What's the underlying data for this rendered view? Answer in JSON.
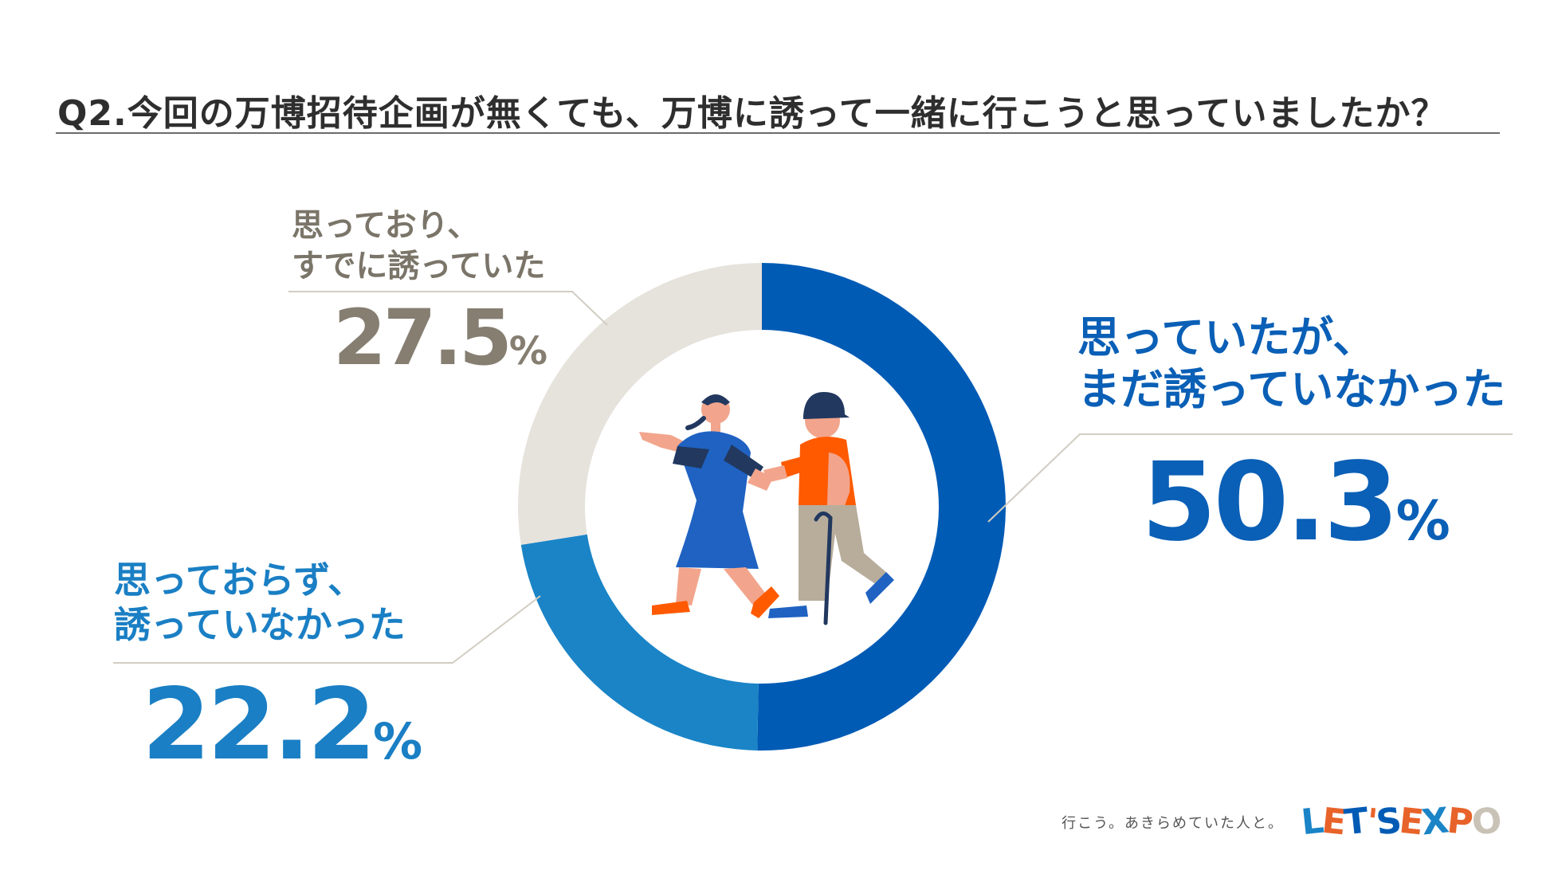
{
  "title": "Q2.今回の万博招待企画が無くても、万博に誘って一緒に行こうと思っていましたか？",
  "chart_data": {
    "type": "pie",
    "donut": true,
    "start_angle_deg": 0,
    "direction": "clockwise",
    "slices": [
      {
        "label": "思っていたが、まだ誘っていなかった",
        "label_lines": [
          "思っていたが、",
          "まだ誘っていなかった"
        ],
        "value": 50.3,
        "display": "50.3",
        "unit": "%",
        "color": "#005bb5"
      },
      {
        "label": "思っておらず、誘っていなかった",
        "label_lines": [
          "思っておらず、",
          "誘っていなかった"
        ],
        "value": 22.2,
        "display": "22.2",
        "unit": "%",
        "color": "#1a84c7"
      },
      {
        "label": "思っており、すでに誘っていた",
        "label_lines": [
          "思っており、",
          "すでに誘っていた"
        ],
        "value": 27.5,
        "display": "27.5",
        "unit": "%",
        "color": "#e6e2dc"
      }
    ]
  },
  "footer": {
    "tagline": "行こう。あきらめていた人と。",
    "logo_letters": [
      "L",
      "E",
      "T",
      "'",
      "S",
      "E",
      "X",
      "P",
      "O"
    ],
    "logo_colors": [
      "#1a84c7",
      "#e8632a",
      "#005bb5",
      "#e8632a",
      "#005bb5",
      "#e8632a",
      "#1a84c7",
      "#e8632a",
      "#c9c2b6"
    ]
  },
  "illustration": {
    "icon": "people-walking-with-cane-icon",
    "colors": {
      "blue": "#1f62c2",
      "navy": "#22385f",
      "orange": "#ff5a00",
      "skin": "#f2a58c",
      "khaki": "#b8ad9b"
    }
  }
}
